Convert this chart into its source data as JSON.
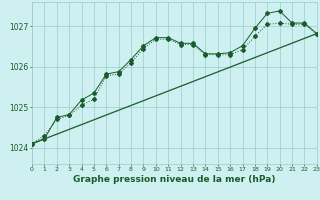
{
  "title": "Graphe pression niveau de la mer (hPa)",
  "background_color": "#cef0f0",
  "grid_color": "#99cccc",
  "line_color": "#1a5c2a",
  "x_min": 0,
  "x_max": 23,
  "y_min": 1023.6,
  "y_max": 1027.6,
  "yticks": [
    1024,
    1025,
    1026,
    1027
  ],
  "xticks": [
    0,
    1,
    2,
    3,
    4,
    5,
    6,
    7,
    8,
    9,
    10,
    11,
    12,
    13,
    14,
    15,
    16,
    17,
    18,
    19,
    20,
    21,
    22,
    23
  ],
  "line1_x": [
    0,
    1,
    2,
    3,
    4,
    5,
    6,
    7,
    8,
    9,
    10,
    11,
    12,
    13,
    14,
    15,
    16,
    17,
    18,
    19,
    20,
    21,
    22,
    23
  ],
  "line1_y": [
    1024.1,
    1024.3,
    1024.7,
    1024.8,
    1025.05,
    1025.2,
    1025.78,
    1025.82,
    1026.1,
    1026.45,
    1026.68,
    1026.68,
    1026.55,
    1026.55,
    1026.3,
    1026.3,
    1026.3,
    1026.42,
    1026.75,
    1027.05,
    1027.08,
    1027.05,
    1027.05,
    1026.8
  ],
  "line2_x": [
    0,
    1,
    2,
    3,
    4,
    5,
    6,
    7,
    8,
    9,
    10,
    11,
    12,
    13,
    14,
    15,
    16,
    17,
    18,
    19,
    20,
    21,
    22,
    23
  ],
  "line2_y": [
    1024.1,
    1024.22,
    1024.75,
    1024.82,
    1025.18,
    1025.35,
    1025.82,
    1025.88,
    1026.18,
    1026.52,
    1026.72,
    1026.72,
    1026.58,
    1026.58,
    1026.32,
    1026.32,
    1026.35,
    1026.52,
    1026.95,
    1027.32,
    1027.38,
    1027.08,
    1027.08,
    1026.82
  ],
  "line3_x": [
    0,
    23
  ],
  "line3_y": [
    1024.1,
    1026.82
  ]
}
